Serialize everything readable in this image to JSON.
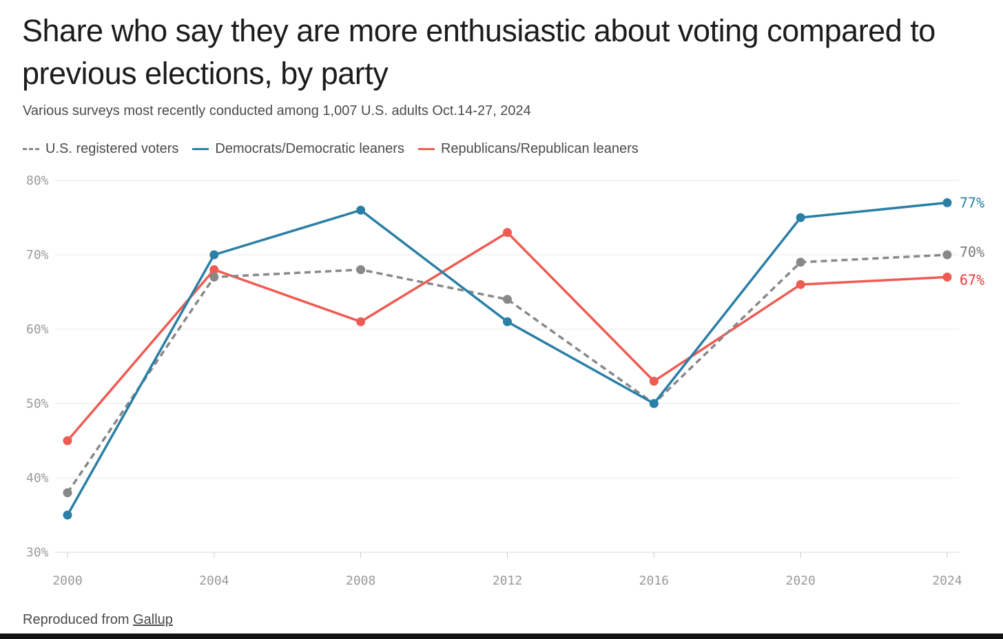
{
  "chart_data": {
    "type": "line",
    "title": "Share who say they are more enthusiastic about voting compared to previous elections, by party",
    "subtitle": "Various surveys most recently conducted among 1,007 U.S. adults Oct.14-27, 2024",
    "x": [
      2000,
      2004,
      2008,
      2012,
      2016,
      2020,
      2024
    ],
    "x_tick_labels": [
      "2000",
      "2004",
      "2008",
      "2012",
      "2016",
      "2020",
      "2024"
    ],
    "ylim": [
      30,
      80
    ],
    "y_ticks": [
      30,
      40,
      50,
      60,
      70,
      80
    ],
    "y_tick_labels": [
      "30%",
      "40%",
      "50%",
      "60%",
      "70%",
      "80%"
    ],
    "grid": true,
    "legend_position": "top-left",
    "series": [
      {
        "name": "U.S. registered voters",
        "color": "#888888",
        "style": "dashed",
        "values": [
          38,
          67,
          68,
          64,
          50,
          69,
          70
        ],
        "end_label": "70%"
      },
      {
        "name": "Democrats/Democratic leaners",
        "color": "#2a7fa6",
        "style": "solid",
        "values": [
          35,
          70,
          76,
          61,
          50,
          75,
          77
        ],
        "end_label": "77%"
      },
      {
        "name": "Republicans/Republican leaners",
        "color": "#ef5b52",
        "style": "solid",
        "values": [
          45,
          68,
          61,
          73,
          53,
          66,
          67
        ],
        "end_label": "67%"
      }
    ]
  },
  "legend": {
    "voters": "U.S. registered voters",
    "dems": "Democrats/Democratic leaners",
    "reps": "Republicans/Republican leaners"
  },
  "source": {
    "prefix": "Reproduced from ",
    "link": "Gallup"
  },
  "colors": {
    "voters": "#888888",
    "dems": "#2a7fa6",
    "reps": "#ef5b52",
    "dems_label": "#2a7fa6",
    "reps_label": "#e23a3a",
    "voters_label": "#777777"
  }
}
